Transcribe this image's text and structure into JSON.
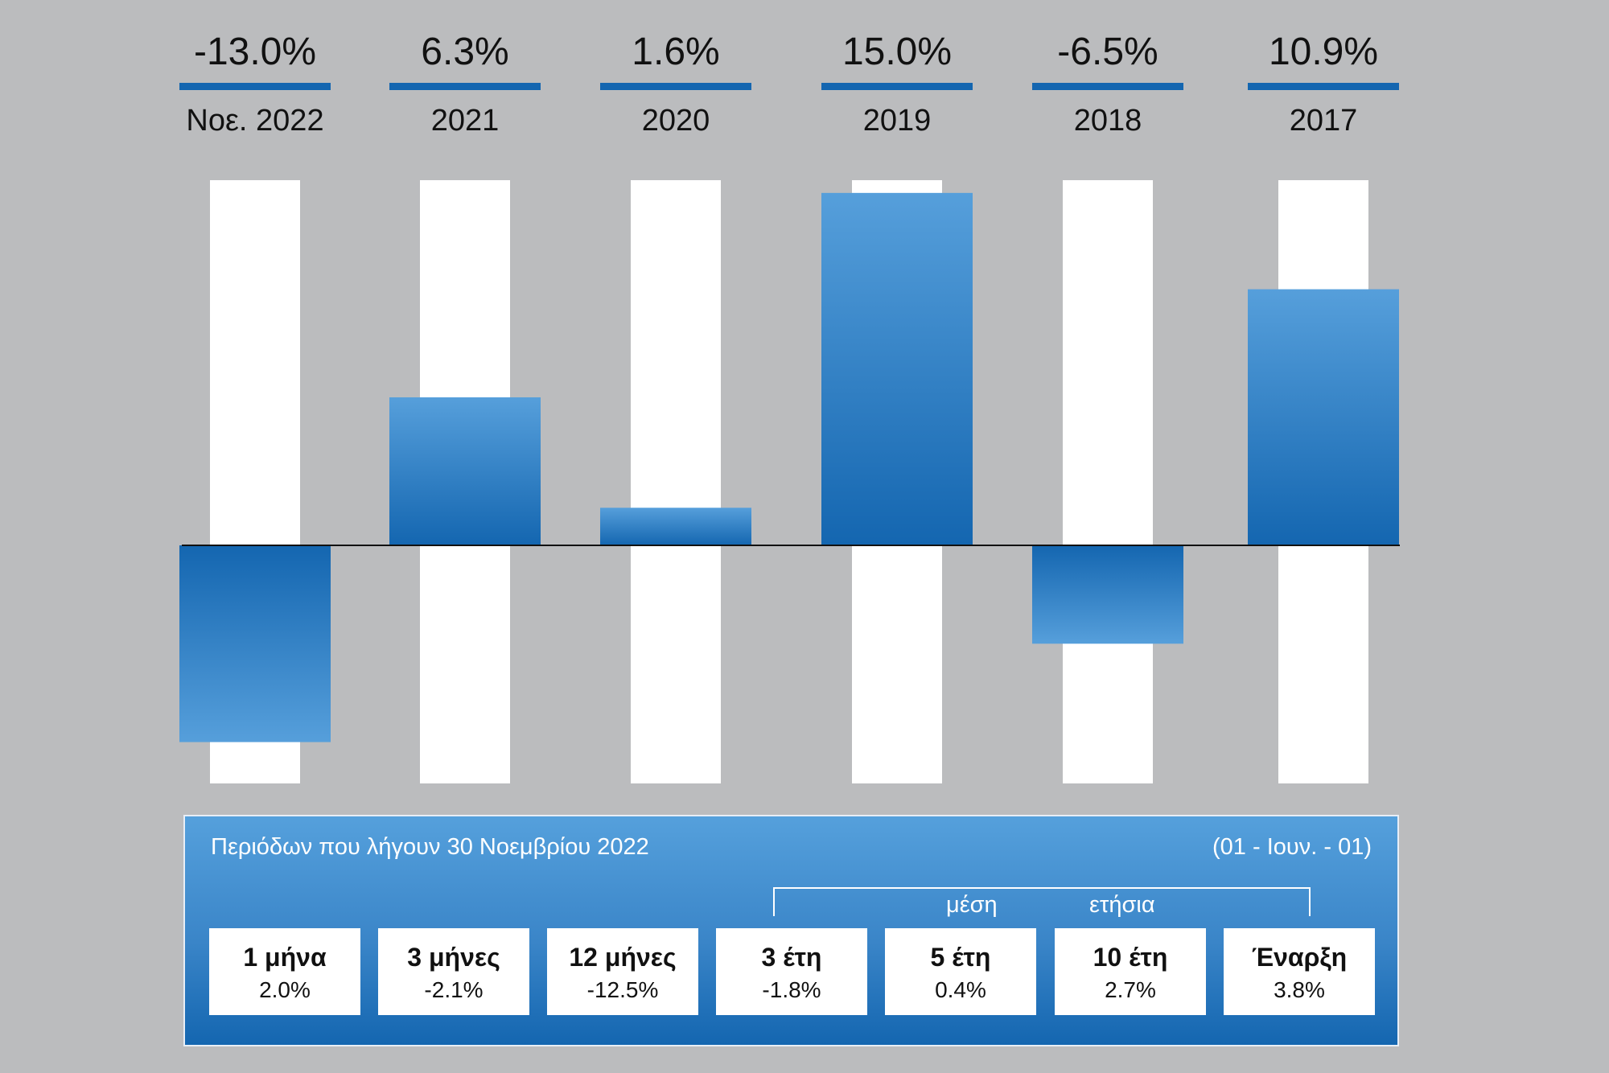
{
  "colors": {
    "background": "#bbbcbe",
    "bar_light": "#569fdb",
    "bar_dark": "#1466b0",
    "track": "#ffffff",
    "header_rule": "#1466b0"
  },
  "chart_data": {
    "type": "bar",
    "categories": [
      "Νοε. 2022",
      "2021",
      "2020",
      "2019",
      "2018",
      "2017"
    ],
    "values": [
      -13.0,
      6.3,
      1.6,
      15.0,
      -6.5,
      10.9
    ],
    "value_labels": [
      "-13.0%",
      "6.3%",
      "1.6%",
      "15.0%",
      "-6.5%",
      "10.9%"
    ],
    "ylim": [
      -13.5,
      15.2
    ],
    "grid": false,
    "title": "",
    "xlabel": "",
    "ylabel": ""
  },
  "summary": {
    "title": "Περιόδων που λήγουν 30 Νοεμβρίου 2022",
    "note": "(01 - Ιουν. - 01)",
    "avg_label_1": "μέση",
    "avg_label_2": "ετήσια",
    "boxes": [
      {
        "label": "1 μήνα",
        "value": "2.0%"
      },
      {
        "label": "3 μήνες",
        "value": "-2.1%"
      },
      {
        "label": "12 μήνες",
        "value": "-12.5%"
      },
      {
        "label": "3 έτη",
        "value": "-1.8%"
      },
      {
        "label": "5 έτη",
        "value": "0.4%"
      },
      {
        "label": "10 έτη",
        "value": "2.7%"
      },
      {
        "label": "Έναρξη",
        "value": "3.8%"
      }
    ]
  }
}
